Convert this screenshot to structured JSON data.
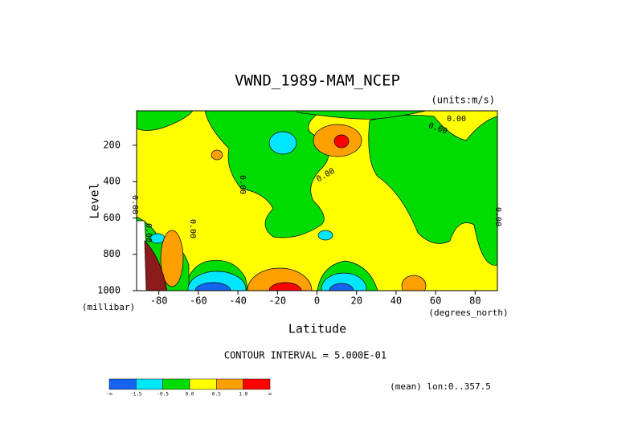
{
  "chart_data": {
    "type": "contour",
    "title": "VWND_1989-MAM_NCEP",
    "subtitle": "(units:m/s)",
    "y_label": "Level",
    "y_unit": "(millibar)",
    "x_label": "Latitude",
    "x_unit": "(degrees_north)",
    "annotation": "CONTOUR INTERVAL = 5.000E-01",
    "footnote": "(mean) lon:0..357.5",
    "xlim": [
      -91.25,
      91.25
    ],
    "xticks": [
      -80,
      -60,
      -40,
      -20,
      0,
      20,
      40,
      60,
      80
    ],
    "ylim": [
      1000,
      10
    ],
    "yticks": [
      200,
      400,
      600,
      800,
      1000
    ],
    "contour_labels": [
      "0.00",
      "0.00",
      "0.00",
      "0.00",
      "0.00",
      "0.00",
      "0.00",
      "0.00"
    ],
    "colorbar": {
      "colors": [
        "#1464f0",
        "#00e6ff",
        "#00dc00",
        "#ffff00",
        "#ffa000",
        "#ff0000"
      ],
      "labels": [
        "-∞",
        "-1.5",
        "-0.5",
        "0.0",
        "0.5",
        "1.0",
        "∞"
      ]
    }
  }
}
